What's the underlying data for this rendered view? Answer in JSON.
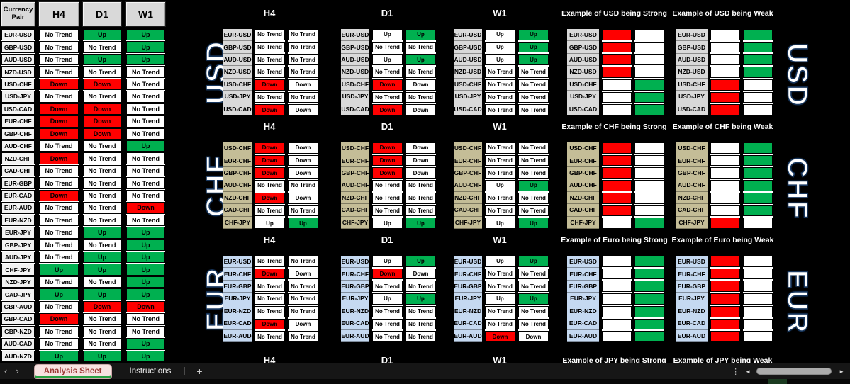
{
  "colors": {
    "green": "#00B050",
    "red": "#FF0000",
    "usd_label_bg": "#D9D9D9",
    "chf_label_bg": "#C4BD97",
    "eur_label_bg": "#C5D9F1",
    "header_bg": "#D9D9D9"
  },
  "left_panel": {
    "pair_header": "Currency Pair",
    "timeframe_headers": [
      "H4",
      "D1",
      "W1"
    ],
    "rows": [
      {
        "pair": "EUR-USD",
        "trends": [
          "No Trend",
          "Up",
          "Up"
        ]
      },
      {
        "pair": "GBP-USD",
        "trends": [
          "No Trend",
          "No Trend",
          "Up"
        ]
      },
      {
        "pair": "AUD-USD",
        "trends": [
          "No Trend",
          "Up",
          "Up"
        ]
      },
      {
        "pair": "NZD-USD",
        "trends": [
          "No Trend",
          "No Trend",
          "No Trend"
        ]
      },
      {
        "pair": "USD-CHF",
        "trends": [
          "Down",
          "Down",
          "No Trend"
        ]
      },
      {
        "pair": "USD-JPY",
        "trends": [
          "No Trend",
          "No Trend",
          "No Trend"
        ]
      },
      {
        "pair": "USD-CAD",
        "trends": [
          "Down",
          "Down",
          "No Trend"
        ]
      },
      {
        "pair": "EUR-CHF",
        "trends": [
          "Down",
          "Down",
          "No Trend"
        ]
      },
      {
        "pair": "GBP-CHF",
        "trends": [
          "Down",
          "Down",
          "No Trend"
        ]
      },
      {
        "pair": "AUD-CHF",
        "trends": [
          "No Trend",
          "No Trend",
          "Up"
        ]
      },
      {
        "pair": "NZD-CHF",
        "trends": [
          "Down",
          "No Trend",
          "No Trend"
        ]
      },
      {
        "pair": "CAD-CHF",
        "trends": [
          "No Trend",
          "No Trend",
          "No Trend"
        ]
      },
      {
        "pair": "EUR-GBP",
        "trends": [
          "No Trend",
          "No Trend",
          "No Trend"
        ]
      },
      {
        "pair": "EUR-CAD",
        "trends": [
          "Down",
          "No Trend",
          "No Trend"
        ]
      },
      {
        "pair": "EUR-AUD",
        "trends": [
          "No Trend",
          "No Trend",
          "Down"
        ]
      },
      {
        "pair": "EUR-NZD",
        "trends": [
          "No Trend",
          "No Trend",
          "No Trend"
        ]
      },
      {
        "pair": "EUR-JPY",
        "trends": [
          "No Trend",
          "Up",
          "Up"
        ]
      },
      {
        "pair": "GBP-JPY",
        "trends": [
          "No Trend",
          "No Trend",
          "Up"
        ]
      },
      {
        "pair": "AUD-JPY",
        "trends": [
          "No Trend",
          "Up",
          "Up"
        ]
      },
      {
        "pair": "CHF-JPY",
        "trends": [
          "Up",
          "Up",
          "Up"
        ]
      },
      {
        "pair": "NZD-JPY",
        "trends": [
          "No Trend",
          "No Trend",
          "Up"
        ]
      },
      {
        "pair": "CAD-JPY",
        "trends": [
          "Up",
          "Up",
          "Up"
        ]
      },
      {
        "pair": "GBP-AUD",
        "trends": [
          "No Trend",
          "Down",
          "Down"
        ]
      },
      {
        "pair": "GBP-CAD",
        "trends": [
          "Down",
          "No Trend",
          "No Trend"
        ]
      },
      {
        "pair": "GBP-NZD",
        "trends": [
          "No Trend",
          "No Trend",
          "No Trend"
        ]
      },
      {
        "pair": "AUD-CAD",
        "trends": [
          "No Trend",
          "No Trend",
          "Up"
        ]
      },
      {
        "pair": "AUD-NZD",
        "trends": [
          "Up",
          "Up",
          "Up"
        ]
      }
    ]
  },
  "sections": [
    {
      "currency": "USD",
      "label_bg": "#D9D9D9",
      "pairs": [
        "EUR-USD",
        "GBP-USD",
        "AUD-USD",
        "NZD-USD",
        "USD-CHF",
        "USD-JPY",
        "USD-CAD"
      ],
      "timeframes": [
        {
          "name": "H4",
          "trends": [
            "No Trend",
            "No Trend",
            "No Trend",
            "No Trend",
            "Down",
            "No Trend",
            "Down"
          ]
        },
        {
          "name": "D1",
          "trends": [
            "Up",
            "No Trend",
            "Up",
            "No Trend",
            "Down",
            "No Trend",
            "Down"
          ]
        },
        {
          "name": "W1",
          "trends": [
            "Up",
            "Up",
            "Up",
            "No Trend",
            "No Trend",
            "No Trend",
            "No Trend"
          ]
        }
      ],
      "strong_title": "Example of USD being Strong",
      "weak_title": "Example of USD being Weak",
      "strong": [
        "down",
        "down",
        "down",
        "down",
        "up",
        "up",
        "up"
      ],
      "weak": [
        "up",
        "up",
        "up",
        "up",
        "down",
        "down",
        "down"
      ]
    },
    {
      "currency": "CHF",
      "label_bg": "#C4BD97",
      "pairs": [
        "USD-CHF",
        "EUR-CHF",
        "GBP-CHF",
        "AUD-CHF",
        "NZD-CHF",
        "CAD-CHF",
        "CHF-JPY"
      ],
      "timeframes": [
        {
          "name": "H4",
          "trends": [
            "Down",
            "Down",
            "Down",
            "No Trend",
            "Down",
            "No Trend",
            "Up"
          ]
        },
        {
          "name": "D1",
          "trends": [
            "Down",
            "Down",
            "Down",
            "No Trend",
            "No Trend",
            "No Trend",
            "Up"
          ]
        },
        {
          "name": "W1",
          "trends": [
            "No Trend",
            "No Trend",
            "No Trend",
            "Up",
            "No Trend",
            "No Trend",
            "Up"
          ]
        }
      ],
      "strong_title": "Example of CHF being Strong",
      "weak_title": "Example of CHF being Weak",
      "strong": [
        "down",
        "down",
        "down",
        "down",
        "down",
        "down",
        "up"
      ],
      "weak": [
        "up",
        "up",
        "up",
        "up",
        "up",
        "up",
        "down"
      ]
    },
    {
      "currency": "EUR",
      "label_bg": "#C5D9F1",
      "pairs": [
        "EUR-USD",
        "EUR-CHF",
        "EUR-GBP",
        "EUR-JPY",
        "EUR-NZD",
        "EUR-CAD",
        "EUR-AUD"
      ],
      "timeframes": [
        {
          "name": "H4",
          "trends": [
            "No Trend",
            "Down",
            "No Trend",
            "No Trend",
            "No Trend",
            "Down",
            "No Trend"
          ]
        },
        {
          "name": "D1",
          "trends": [
            "Up",
            "Down",
            "No Trend",
            "Up",
            "No Trend",
            "No Trend",
            "No Trend"
          ]
        },
        {
          "name": "W1",
          "trends": [
            "Up",
            "No Trend",
            "No Trend",
            "Up",
            "No Trend",
            "No Trend",
            "Down"
          ]
        }
      ],
      "strong_title": "Example of Euro being Strong",
      "weak_title": "Example of Euro being Weak",
      "strong": [
        "up",
        "up",
        "up",
        "up",
        "up",
        "up",
        "up"
      ],
      "weak": [
        "down",
        "down",
        "down",
        "down",
        "down",
        "down",
        "down"
      ]
    }
  ],
  "jpy_section_partial": {
    "timeframe_headers": [
      "H4",
      "D1",
      "W1"
    ],
    "strong_title": "Example of JPY being Strong",
    "weak_title": "Example of JPY being Weak"
  },
  "tab_bar": {
    "nav_left": "‹",
    "nav_right": "›",
    "tabs": [
      {
        "label": "Analysis Sheet",
        "active": true
      },
      {
        "label": "Instructions",
        "active": false
      }
    ],
    "add_label": "+",
    "more_dots": "⋮",
    "scroll_left": "◄",
    "scroll_right": "►"
  }
}
